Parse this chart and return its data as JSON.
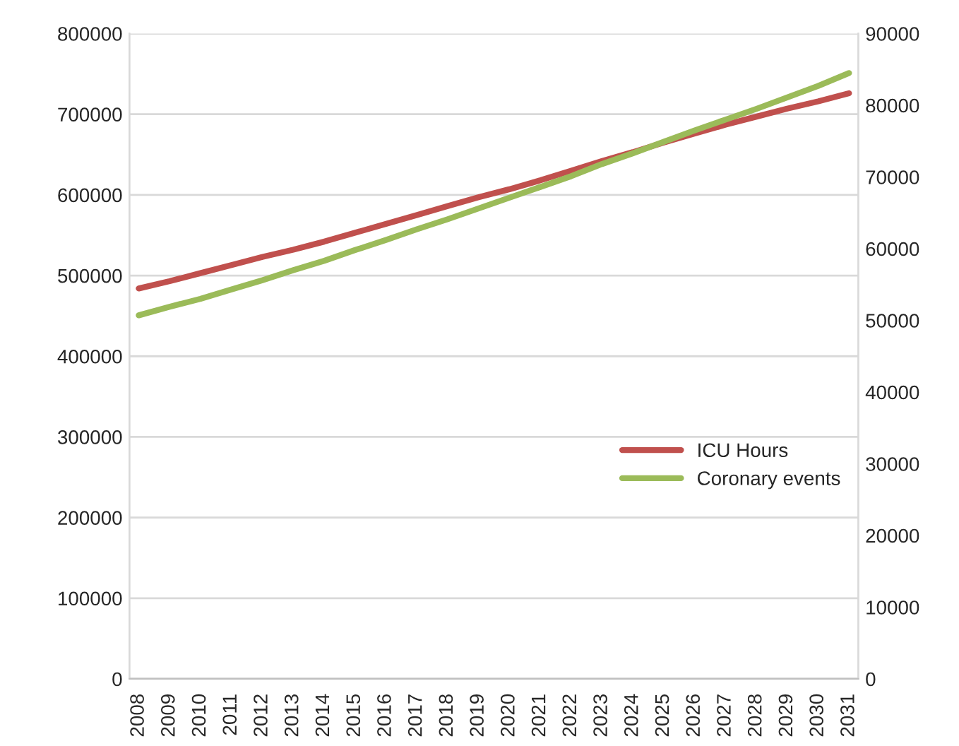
{
  "chart_data": {
    "type": "line",
    "categories": [
      "2008",
      "2009",
      "2010",
      "2011",
      "2012",
      "2013",
      "2014",
      "2015",
      "2016",
      "2017",
      "2018",
      "2019",
      "2020",
      "2021",
      "2022",
      "2023",
      "2024",
      "2025",
      "2026",
      "2027",
      "2028",
      "2029",
      "2030",
      "2031"
    ],
    "series": [
      {
        "name": "ICU Hours",
        "color": "#c0504d",
        "values": [
          484000,
          493000,
          503000,
          513000,
          523000,
          532000,
          542000,
          553000,
          564000,
          575000,
          586000,
          597000,
          607000,
          618000,
          630000,
          642000,
          653000,
          665000,
          676000,
          687000,
          697000,
          707000,
          716000,
          726000
        ]
      },
      {
        "name": "Coronary events",
        "color": "#9bbb59",
        "axis": "y2",
        "values": [
          50700,
          51900,
          53000,
          54300,
          55600,
          57000,
          58300,
          59800,
          61200,
          62700,
          64100,
          65600,
          67100,
          68600,
          70100,
          71800,
          73300,
          74900,
          76500,
          78000,
          79500,
          81100,
          82700,
          84500
        ]
      }
    ],
    "ylim": [
      0,
      800000
    ],
    "yticks": [
      0,
      100000,
      200000,
      300000,
      400000,
      500000,
      600000,
      700000,
      800000
    ],
    "y2lim": [
      0,
      90000
    ],
    "y2ticks": [
      0,
      10000,
      20000,
      30000,
      40000,
      50000,
      60000,
      70000,
      80000,
      90000
    ],
    "grid": "y",
    "legend": "right",
    "marker": "none",
    "line_style": "solid"
  }
}
